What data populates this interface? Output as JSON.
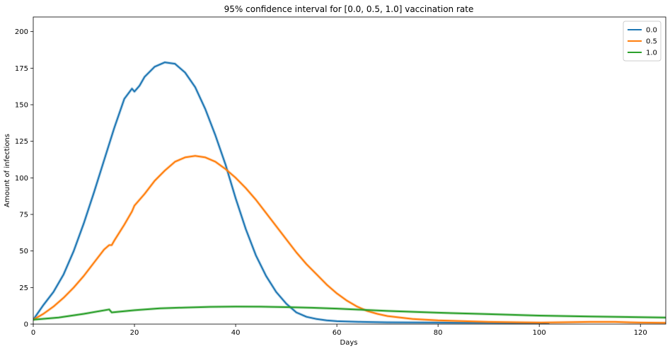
{
  "chart_data": {
    "type": "line",
    "title": "95% confidence interval for [0.0, 0.5, 1.0] vaccination rate",
    "xlabel": "Days",
    "ylabel": "Amount of infections",
    "xlim": [
      0,
      125
    ],
    "ylim": [
      0,
      210
    ],
    "xticks": [
      0,
      20,
      40,
      60,
      80,
      100,
      120
    ],
    "yticks": [
      0,
      25,
      50,
      75,
      100,
      125,
      150,
      175,
      200
    ],
    "grid": false,
    "legend_position": "top-right",
    "series": [
      {
        "name": "0.0",
        "color": "#1f77b4",
        "x": [
          0,
          2,
          4,
          6,
          8,
          10,
          12,
          14,
          16,
          18,
          19.5,
          20,
          20.5,
          21,
          22,
          24,
          26,
          28,
          30,
          32,
          34,
          36,
          38,
          40,
          42,
          44,
          46,
          48,
          50,
          52,
          54,
          56,
          58,
          60,
          65,
          70,
          80,
          90,
          100,
          102
        ],
        "y": [
          3,
          13,
          22,
          34,
          50,
          69,
          90,
          112,
          134,
          154,
          161,
          159,
          161,
          163,
          169,
          176,
          179,
          178,
          172,
          162,
          147,
          129,
          109,
          86,
          65,
          47,
          33,
          22,
          14,
          8,
          5,
          3.5,
          2.5,
          2,
          1.5,
          1.2,
          1,
          0.8,
          0.6,
          0
        ]
      },
      {
        "name": "0.5",
        "color": "#ff7f0e",
        "x": [
          0,
          2,
          4,
          6,
          8,
          10,
          12,
          14,
          15,
          15.5,
          16,
          18,
          19.5,
          20,
          22,
          24,
          26,
          28,
          30,
          32,
          34,
          36,
          38,
          40,
          42,
          44,
          46,
          48,
          50,
          52,
          54,
          56,
          58,
          60,
          62,
          64,
          66,
          68,
          70,
          75,
          80,
          90,
          100,
          110,
          115,
          120,
          125
        ],
        "y": [
          3,
          7,
          12,
          18,
          25,
          33,
          42,
          51,
          54,
          54,
          57,
          68,
          77,
          81,
          89,
          98,
          105,
          111,
          114,
          115,
          114,
          111,
          106,
          100,
          93,
          85,
          76,
          67,
          58,
          49,
          41,
          34,
          27,
          21,
          16,
          12,
          9,
          7,
          5.5,
          3.5,
          2.5,
          1.5,
          1,
          1.5,
          1.5,
          1,
          0.8
        ]
      },
      {
        "name": "1.0",
        "color": "#2ca02c",
        "x": [
          0,
          5,
          10,
          15,
          15.5,
          20,
          25,
          30,
          35,
          40,
          45,
          50,
          55,
          60,
          65,
          70,
          80,
          90,
          100,
          110,
          125
        ],
        "y": [
          3,
          4.5,
          7,
          10,
          8,
          9.5,
          10.8,
          11.3,
          11.8,
          12,
          11.9,
          11.6,
          11.2,
          10.6,
          9.8,
          9,
          7.8,
          6.8,
          5.8,
          5.2,
          4.5
        ]
      }
    ]
  }
}
